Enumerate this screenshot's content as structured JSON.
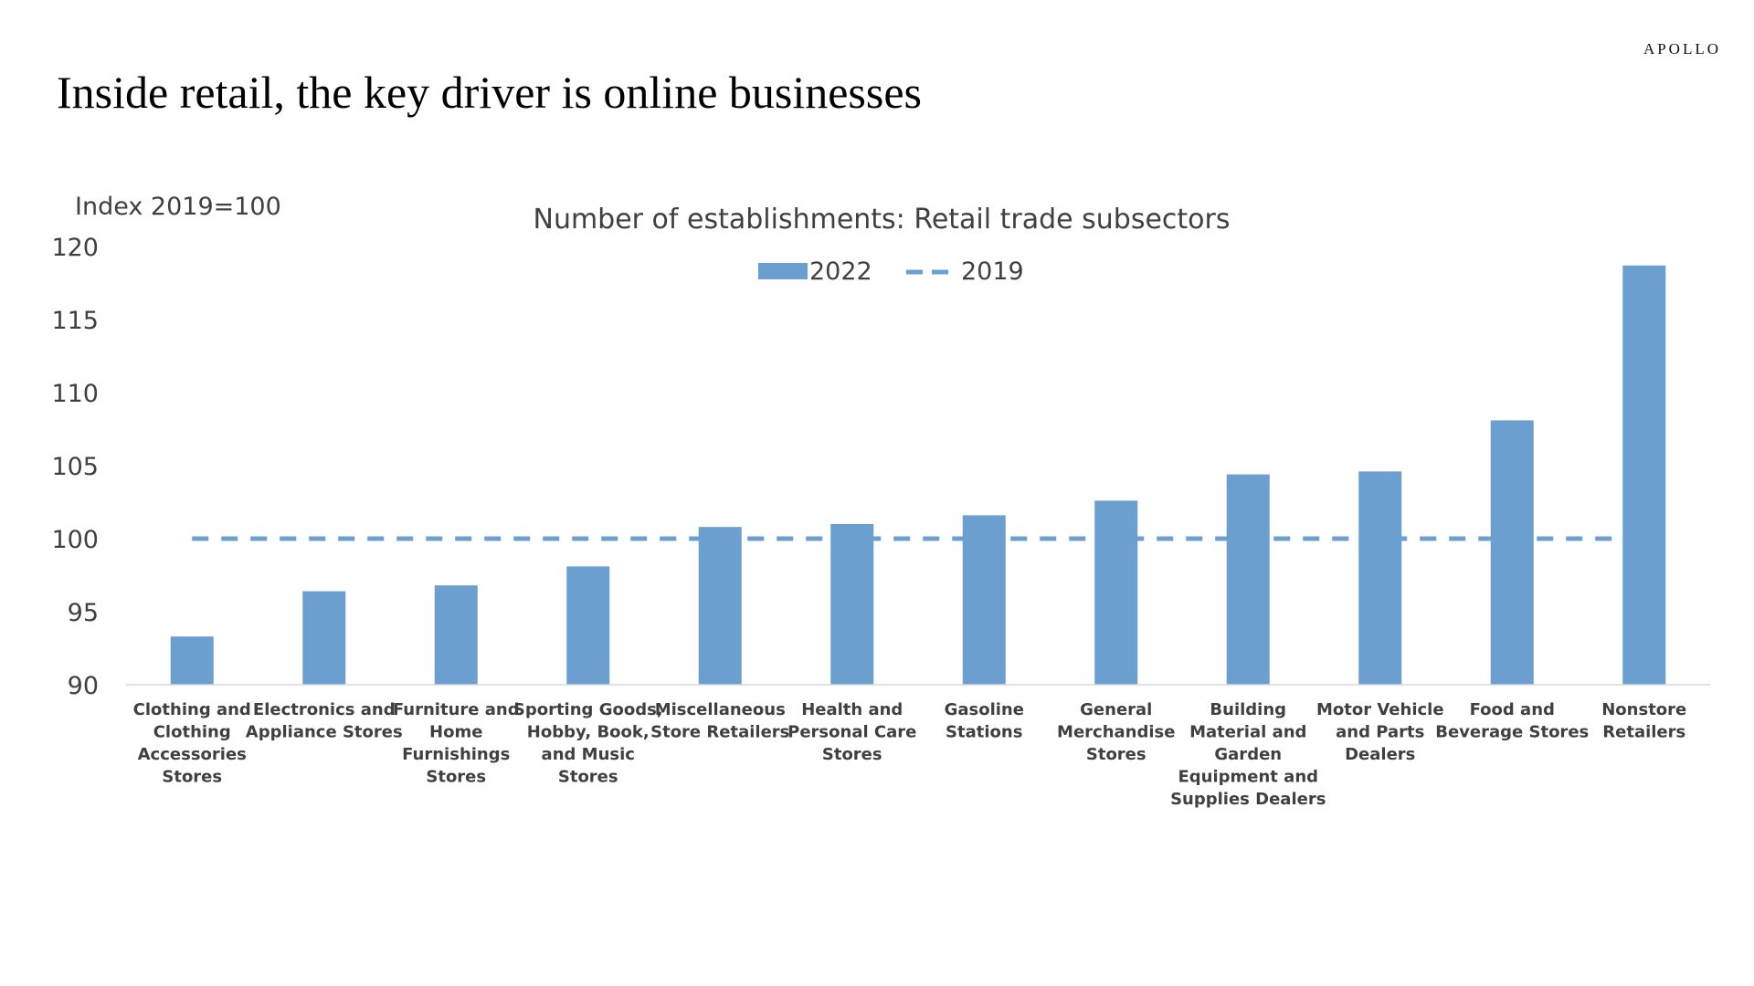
{
  "brand": "APOLLO",
  "page_title": "Inside retail, the key driver is online businesses",
  "chart_data": {
    "type": "bar",
    "title": "Number of establishments: Retail trade subsectors",
    "ylabel": "Index 2019=100",
    "xlabel": "",
    "ylim": [
      90,
      120
    ],
    "yticks": [
      90,
      95,
      100,
      105,
      110,
      115,
      120
    ],
    "legend_position": "top-center",
    "grid": false,
    "categories": [
      "Clothing and Clothing Accessories Stores",
      "Electronics and Appliance Stores",
      "Furniture and Home Furnishings Stores",
      "Sporting Goods, Hobby, Book, and Music Stores",
      "Miscellaneous Store Retailers",
      "Health and Personal Care Stores",
      "Gasoline Stations",
      "General Merchandise Stores",
      "Building Material and Garden Equipment and Supplies Dealers",
      "Motor Vehicle and Parts Dealers",
      "Food and Beverage Stores",
      "Nonstore Retailers"
    ],
    "category_lines": [
      [
        "Clothing and",
        "Clothing",
        "Accessories",
        "Stores"
      ],
      [
        "Electronics and",
        "Appliance Stores"
      ],
      [
        "Furniture and",
        "Home",
        "Furnishings",
        "Stores"
      ],
      [
        "Sporting Goods,",
        "Hobby, Book,",
        "and Music",
        "Stores"
      ],
      [
        "Miscellaneous",
        "Store Retailers"
      ],
      [
        "Health and",
        "Personal Care",
        "Stores"
      ],
      [
        "Gasoline",
        "Stations"
      ],
      [
        "General",
        "Merchandise",
        "Stores"
      ],
      [
        "Building",
        "Material and",
        "Garden",
        "Equipment and",
        "Supplies Dealers"
      ],
      [
        "Motor Vehicle",
        "and Parts",
        "Dealers"
      ],
      [
        "Food and",
        "Beverage Stores"
      ],
      [
        "Nonstore",
        "Retailers"
      ]
    ],
    "series": [
      {
        "name": "2022",
        "kind": "bar",
        "color": "#6a9fd0",
        "values": [
          93.3,
          96.4,
          96.8,
          98.1,
          100.8,
          101.0,
          101.6,
          102.6,
          104.4,
          104.6,
          108.1,
          118.7
        ]
      },
      {
        "name": "2019",
        "kind": "dashed-line",
        "color": "#6a9fd0",
        "values": [
          100,
          100,
          100,
          100,
          100,
          100,
          100,
          100,
          100,
          100,
          100,
          100
        ]
      }
    ]
  }
}
